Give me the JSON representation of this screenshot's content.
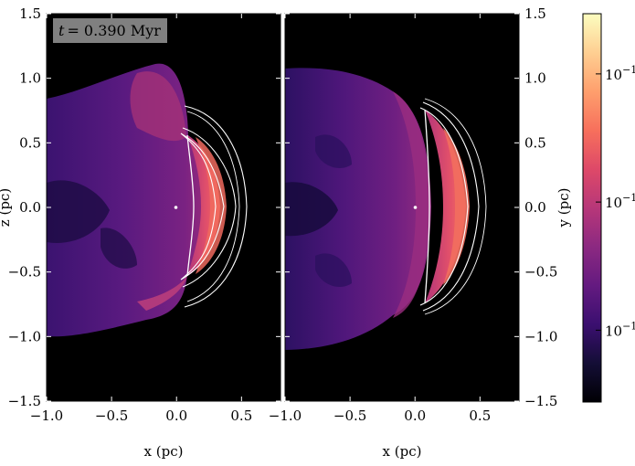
{
  "chart_data": [
    {
      "type": "heatmap",
      "panel": "left",
      "annotation": {
        "symbol": "t",
        "text": "= 0.390 Myr",
        "full": "t = 0.390 Myr"
      },
      "xlabel": "x  (pc)",
      "ylabel": "z  (pc)",
      "xlim": [
        -1.0,
        0.8
      ],
      "ylim": [
        -1.5,
        1.5
      ],
      "x_ticks": [
        -1.0,
        -0.5,
        0.0,
        0.5
      ],
      "x_tick_labels": [
        "−1.0",
        "−0.5",
        "0.0",
        "0.5"
      ],
      "y_ticks": [
        -1.5,
        -1.0,
        -0.5,
        0.0,
        0.5,
        1.0,
        1.5
      ],
      "y_tick_labels": [
        "−1.5",
        "−1.0",
        "−0.5",
        "0.0",
        "0.5",
        "1.0",
        "1.5"
      ],
      "contours": "white",
      "background": "#000000"
    },
    {
      "type": "heatmap",
      "panel": "right",
      "xlabel": "x  (pc)",
      "ylabel": "y  (pc)",
      "ylabel_position": "right",
      "xlim": [
        -1.0,
        0.8
      ],
      "ylim": [
        -1.5,
        1.5
      ],
      "x_ticks": [
        -1.0,
        -0.5,
        0.0,
        0.5
      ],
      "x_tick_labels": [
        "−1.0",
        "−0.5",
        "0.0",
        "0.5"
      ],
      "y_ticks": [
        -1.5,
        -1.0,
        -0.5,
        0.0,
        0.5,
        1.0,
        1.5
      ],
      "y_tick_labels": [
        "−1.5",
        "−1.0",
        "−0.5",
        "0.0",
        "0.5",
        "1.0",
        "1.5"
      ],
      "contours": "white",
      "background": "#000000"
    }
  ],
  "colorbar": {
    "cmap": "magma",
    "scale": "log",
    "tick_labels": [
      {
        "base": "10",
        "exp": "−1"
      },
      {
        "base": "10",
        "exp": "−1"
      },
      {
        "base": "10",
        "exp": "−1"
      }
    ],
    "colors": [
      "#000004",
      "#140e36",
      "#3b0f70",
      "#641a80",
      "#8c2981",
      "#b73779",
      "#de4968",
      "#f7705c",
      "#fe9f6d",
      "#fecf92",
      "#fcfdbf"
    ]
  }
}
